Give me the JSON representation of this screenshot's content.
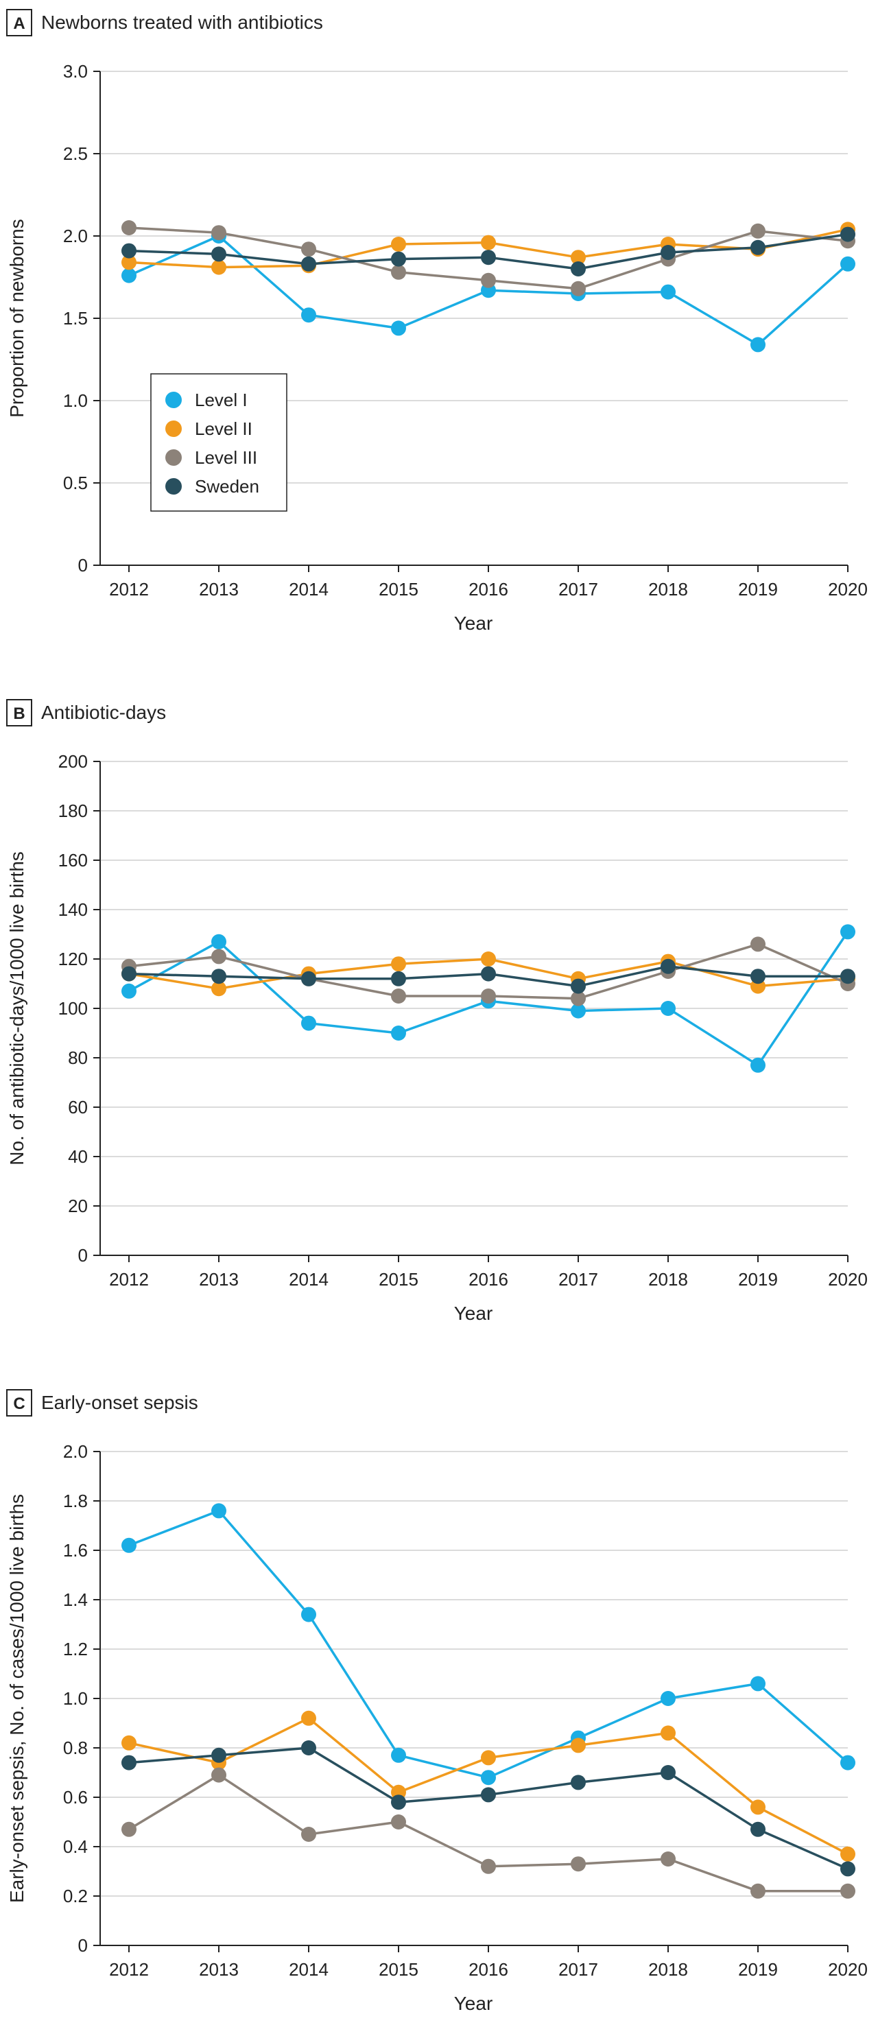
{
  "chart_data": [
    {
      "type": "line",
      "panel_letter": "A",
      "title": "Newborns treated with antibiotics",
      "xlabel": "Year",
      "ylabel": "Proportion of newborns",
      "ylim": [
        0,
        3
      ],
      "yticks": [
        0,
        0.5,
        1.0,
        1.5,
        2.0,
        2.5,
        3.0
      ],
      "ytick_labels": [
        "0",
        "0.5",
        "1.0",
        "1.5",
        "2.0",
        "2.5",
        "3.0"
      ],
      "grid": true,
      "legend": "left-middle",
      "categories": [
        "2012",
        "2013",
        "2014",
        "2015",
        "2016",
        "2017",
        "2018",
        "2019",
        "2020"
      ],
      "series": [
        {
          "name": "Level I",
          "color": "#1AADE4",
          "values": [
            1.76,
            2.0,
            1.52,
            1.44,
            1.67,
            1.65,
            1.66,
            1.34,
            1.83
          ]
        },
        {
          "name": "Level II",
          "color": "#F19A1D",
          "values": [
            1.84,
            1.81,
            1.82,
            1.95,
            1.96,
            1.87,
            1.95,
            1.92,
            2.04
          ]
        },
        {
          "name": "Level III",
          "color": "#8C8279",
          "values": [
            2.05,
            2.02,
            1.92,
            1.78,
            1.73,
            1.68,
            1.86,
            2.03,
            1.97
          ]
        },
        {
          "name": "Sweden",
          "color": "#284F5E",
          "values": [
            1.91,
            1.89,
            1.83,
            1.86,
            1.87,
            1.8,
            1.9,
            1.93,
            2.01
          ]
        }
      ]
    },
    {
      "type": "line",
      "panel_letter": "B",
      "title": "Antibiotic-days",
      "xlabel": "Year",
      "ylabel": "No. of antibiotic-days/1000 live births",
      "ylim": [
        0,
        200
      ],
      "yticks": [
        0,
        20,
        40,
        60,
        80,
        100,
        120,
        140,
        160,
        180,
        200
      ],
      "ytick_labels": [
        "0",
        "20",
        "40",
        "60",
        "80",
        "100",
        "120",
        "140",
        "160",
        "180",
        "200"
      ],
      "grid": true,
      "categories": [
        "2012",
        "2013",
        "2014",
        "2015",
        "2016",
        "2017",
        "2018",
        "2019",
        "2020"
      ],
      "series": [
        {
          "name": "Level I",
          "color": "#1AADE4",
          "values": [
            107,
            127,
            94,
            90,
            103,
            99,
            100,
            77,
            131
          ]
        },
        {
          "name": "Level II",
          "color": "#F19A1D",
          "values": [
            114,
            108,
            114,
            118,
            120,
            112,
            119,
            109,
            112
          ]
        },
        {
          "name": "Level III",
          "color": "#8C8279",
          "values": [
            117,
            121,
            112,
            105,
            105,
            104,
            115,
            126,
            110
          ]
        },
        {
          "name": "Sweden",
          "color": "#284F5E",
          "values": [
            114,
            113,
            112,
            112,
            114,
            109,
            117,
            113,
            113
          ]
        }
      ]
    },
    {
      "type": "line",
      "panel_letter": "C",
      "title": "Early-onset sepsis",
      "xlabel": "Year",
      "ylabel": "Early-onset sepsis, No. of cases/1000 live births",
      "ylim": [
        0,
        2.0
      ],
      "yticks": [
        0,
        0.2,
        0.4,
        0.6,
        0.8,
        1.0,
        1.2,
        1.4,
        1.6,
        1.8,
        2.0
      ],
      "ytick_labels": [
        "0",
        "0.2",
        "0.4",
        "0.6",
        "0.8",
        "1.0",
        "1.2",
        "1.4",
        "1.6",
        "1.8",
        "2.0"
      ],
      "grid": true,
      "categories": [
        "2012",
        "2013",
        "2014",
        "2015",
        "2016",
        "2017",
        "2018",
        "2019",
        "2020"
      ],
      "series": [
        {
          "name": "Level I",
          "color": "#1AADE4",
          "values": [
            1.62,
            1.76,
            1.34,
            0.77,
            0.68,
            0.84,
            1.0,
            1.06,
            0.74
          ]
        },
        {
          "name": "Level II",
          "color": "#F19A1D",
          "values": [
            0.82,
            0.74,
            0.92,
            0.62,
            0.76,
            0.81,
            0.86,
            0.56,
            0.37
          ]
        },
        {
          "name": "Level III",
          "color": "#8C8279",
          "values": [
            0.47,
            0.69,
            0.45,
            0.5,
            0.32,
            0.33,
            0.35,
            0.22,
            0.22
          ]
        },
        {
          "name": "Sweden",
          "color": "#284F5E",
          "values": [
            0.74,
            0.77,
            0.8,
            0.58,
            0.61,
            0.66,
            0.7,
            0.47,
            0.31
          ]
        }
      ]
    }
  ]
}
